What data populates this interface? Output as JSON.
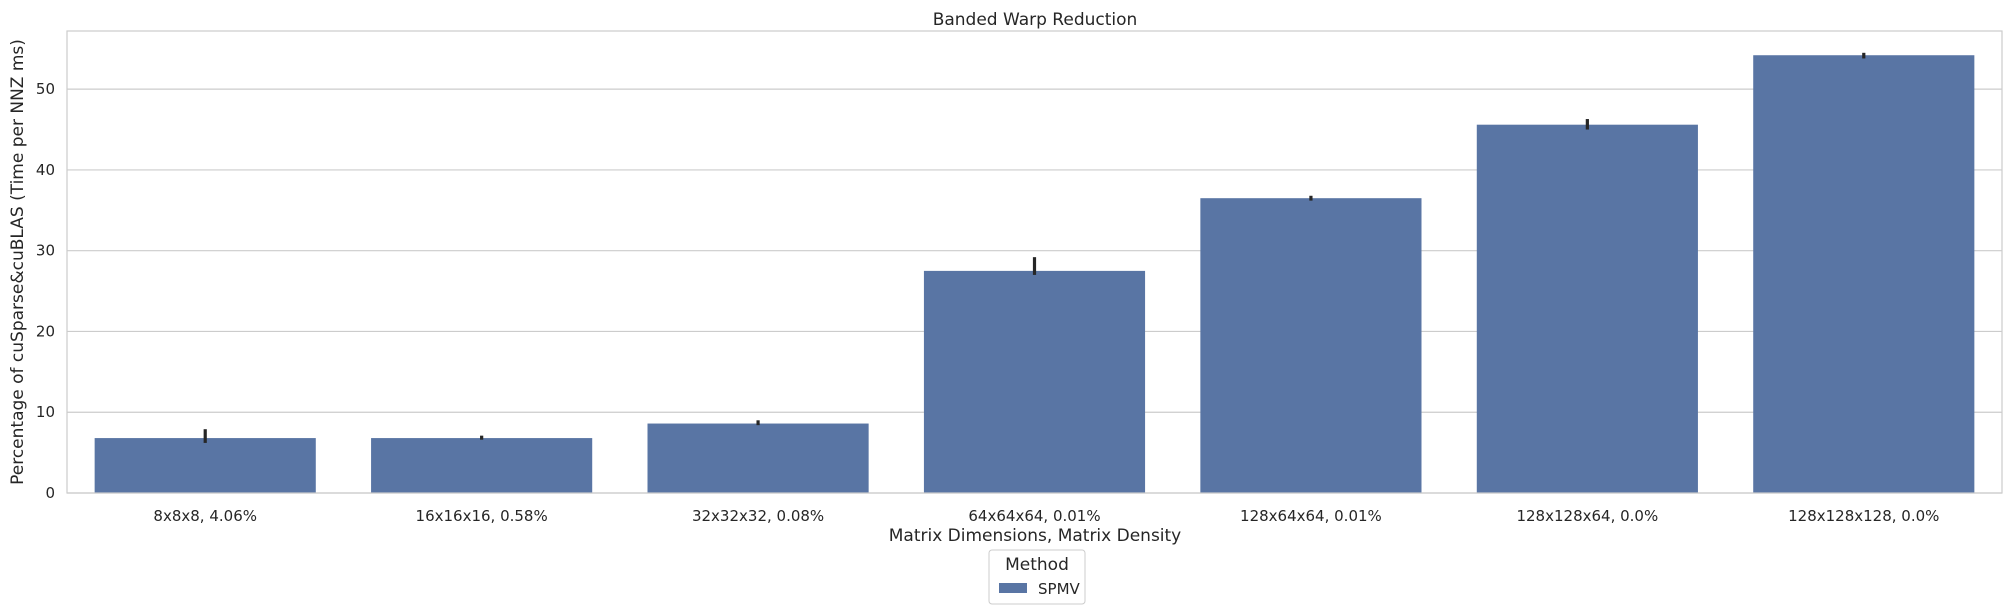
{
  "chart_data": {
    "type": "bar",
    "title": "Banded Warp Reduction",
    "xlabel": "Matrix Dimensions, Matrix Density",
    "ylabel": "Percentage of cuSparse&cuBLAS (Time per NNZ ms)",
    "categories": [
      "8x8x8, 4.06%",
      "16x16x16, 0.58%",
      "32x32x32, 0.08%",
      "64x64x64, 0.01%",
      "128x64x64, 0.01%",
      "128x128x64, 0.0%",
      "128x128x128, 0.0%"
    ],
    "series": [
      {
        "name": "SPMV",
        "values": [
          6.8,
          6.8,
          8.6,
          27.5,
          36.5,
          45.6,
          54.2
        ],
        "error_low": [
          6.2,
          6.6,
          8.4,
          27.0,
          36.2,
          45.0,
          53.8
        ],
        "error_high": [
          7.9,
          7.1,
          9.0,
          29.2,
          36.8,
          46.3,
          54.5
        ]
      }
    ],
    "ylim": [
      0,
      57.2
    ],
    "yticks": [
      0,
      10,
      20,
      30,
      40,
      50
    ],
    "grid": "horizontal",
    "legend": {
      "title": "Method",
      "placement": "bottom-center"
    },
    "colors": {
      "bar": "#5975a4",
      "error": "#262626",
      "grid": "#cccccc",
      "spine": "#cccccc"
    }
  }
}
